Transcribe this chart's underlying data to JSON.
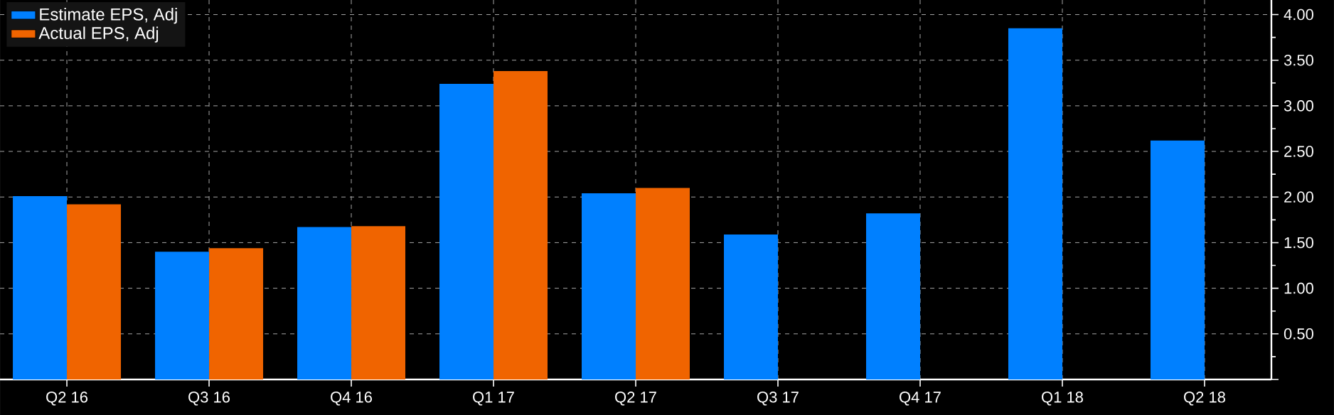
{
  "chart_data": {
    "type": "bar",
    "categories": [
      "Q2 16",
      "Q3 16",
      "Q4 16",
      "Q1 17",
      "Q2 17",
      "Q3 17",
      "Q4 17",
      "Q1 18",
      "Q2 18"
    ],
    "series": [
      {
        "name": "Estimate EPS, Adj",
        "color": "#0080ff",
        "values": [
          2.01,
          1.4,
          1.67,
          3.24,
          2.04,
          1.59,
          1.82,
          3.85,
          2.62
        ]
      },
      {
        "name": "Actual EPS, Adj",
        "color": "#f06400",
        "values": [
          1.92,
          1.44,
          1.68,
          3.38,
          2.1,
          null,
          null,
          null,
          null
        ]
      }
    ],
    "ylim": [
      0,
      4.16
    ],
    "yticks": [
      {
        "value": 0,
        "label": null
      },
      {
        "value": 0.5,
        "label": "0.50"
      },
      {
        "value": 1,
        "label": "1.00"
      },
      {
        "value": 1.5,
        "label": "1.50"
      },
      {
        "value": 2,
        "label": "2.00"
      },
      {
        "value": 2.5,
        "label": "2.50"
      },
      {
        "value": 3,
        "label": "3.00"
      },
      {
        "value": 3.5,
        "label": "3.50"
      },
      {
        "value": 4,
        "label": "4.00"
      }
    ],
    "grid": true,
    "legend": "top left"
  }
}
